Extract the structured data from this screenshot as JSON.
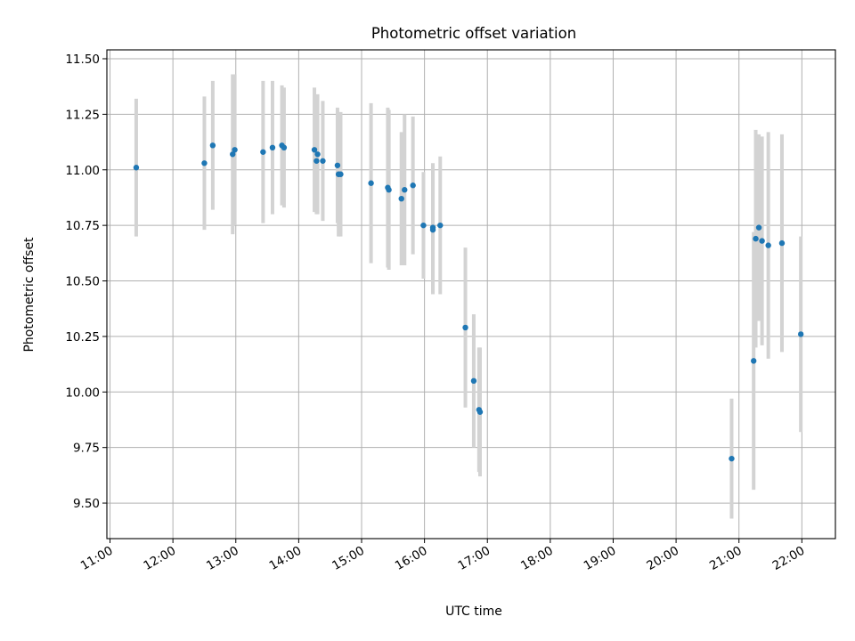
{
  "chart_data": {
    "type": "scatter",
    "title": "Photometric offset variation",
    "xlabel": "UTC time",
    "ylabel": "Photometric offset",
    "xlim": [
      "10:57",
      "22:32"
    ],
    "ylim": [
      9.34,
      11.54
    ],
    "grid": true,
    "x_ticks": [
      "11:00",
      "12:00",
      "13:00",
      "14:00",
      "15:00",
      "16:00",
      "17:00",
      "18:00",
      "19:00",
      "20:00",
      "21:00",
      "22:00"
    ],
    "y_ticks": [
      "9.50",
      "9.75",
      "10.00",
      "10.25",
      "10.50",
      "10.75",
      "11.00",
      "11.25",
      "11.50"
    ],
    "colors": {
      "points": "#1f77b4",
      "error_bars": "#d3d3d3",
      "grid": "#b0b0b0"
    },
    "points": [
      {
        "x": "11:25",
        "y": 11.01,
        "err": 0.31
      },
      {
        "x": "12:30",
        "y": 11.03,
        "err": 0.3
      },
      {
        "x": "12:38",
        "y": 11.11,
        "err": 0.29
      },
      {
        "x": "12:57",
        "y": 11.07,
        "err": 0.36
      },
      {
        "x": "12:59",
        "y": 11.09,
        "err": 0.34
      },
      {
        "x": "13:26",
        "y": 11.08,
        "err": 0.32
      },
      {
        "x": "13:35",
        "y": 11.1,
        "err": 0.3
      },
      {
        "x": "13:44",
        "y": 11.11,
        "err": 0.27
      },
      {
        "x": "13:46",
        "y": 11.1,
        "err": 0.27
      },
      {
        "x": "14:15",
        "y": 11.09,
        "err": 0.28
      },
      {
        "x": "14:17",
        "y": 11.04,
        "err": 0.24
      },
      {
        "x": "14:18",
        "y": 11.07,
        "err": 0.27
      },
      {
        "x": "14:23",
        "y": 11.04,
        "err": 0.27
      },
      {
        "x": "14:37",
        "y": 11.02,
        "err": 0.26
      },
      {
        "x": "14:38",
        "y": 10.98,
        "err": 0.28
      },
      {
        "x": "14:40",
        "y": 10.98,
        "err": 0.28
      },
      {
        "x": "15:09",
        "y": 10.94,
        "err": 0.36
      },
      {
        "x": "15:25",
        "y": 10.92,
        "err": 0.36
      },
      {
        "x": "15:26",
        "y": 10.91,
        "err": 0.36
      },
      {
        "x": "15:38",
        "y": 10.87,
        "err": 0.3
      },
      {
        "x": "15:41",
        "y": 10.91,
        "err": 0.34
      },
      {
        "x": "15:49",
        "y": 10.93,
        "err": 0.31
      },
      {
        "x": "15:59",
        "y": 10.75,
        "err": 0.24
      },
      {
        "x": "16:08",
        "y": 10.74,
        "err": 0.29
      },
      {
        "x": "16:08",
        "y": 10.73,
        "err": 0.29
      },
      {
        "x": "16:15",
        "y": 10.75,
        "err": 0.31
      },
      {
        "x": "16:39",
        "y": 10.29,
        "err": 0.36
      },
      {
        "x": "16:47",
        "y": 10.05,
        "err": 0.3
      },
      {
        "x": "16:52",
        "y": 9.92,
        "err": 0.28
      },
      {
        "x": "16:53",
        "y": 9.91,
        "err": 0.29
      },
      {
        "x": "20:53",
        "y": 9.7,
        "err": 0.27
      },
      {
        "x": "21:14",
        "y": 10.14,
        "err": 0.58
      },
      {
        "x": "21:16",
        "y": 10.69,
        "err": 0.49
      },
      {
        "x": "21:19",
        "y": 10.74,
        "err": 0.42
      },
      {
        "x": "21:22",
        "y": 10.68,
        "err": 0.47
      },
      {
        "x": "21:28",
        "y": 10.66,
        "err": 0.51
      },
      {
        "x": "21:41",
        "y": 10.67,
        "err": 0.49
      },
      {
        "x": "21:59",
        "y": 10.26,
        "err": 0.44
      }
    ]
  }
}
